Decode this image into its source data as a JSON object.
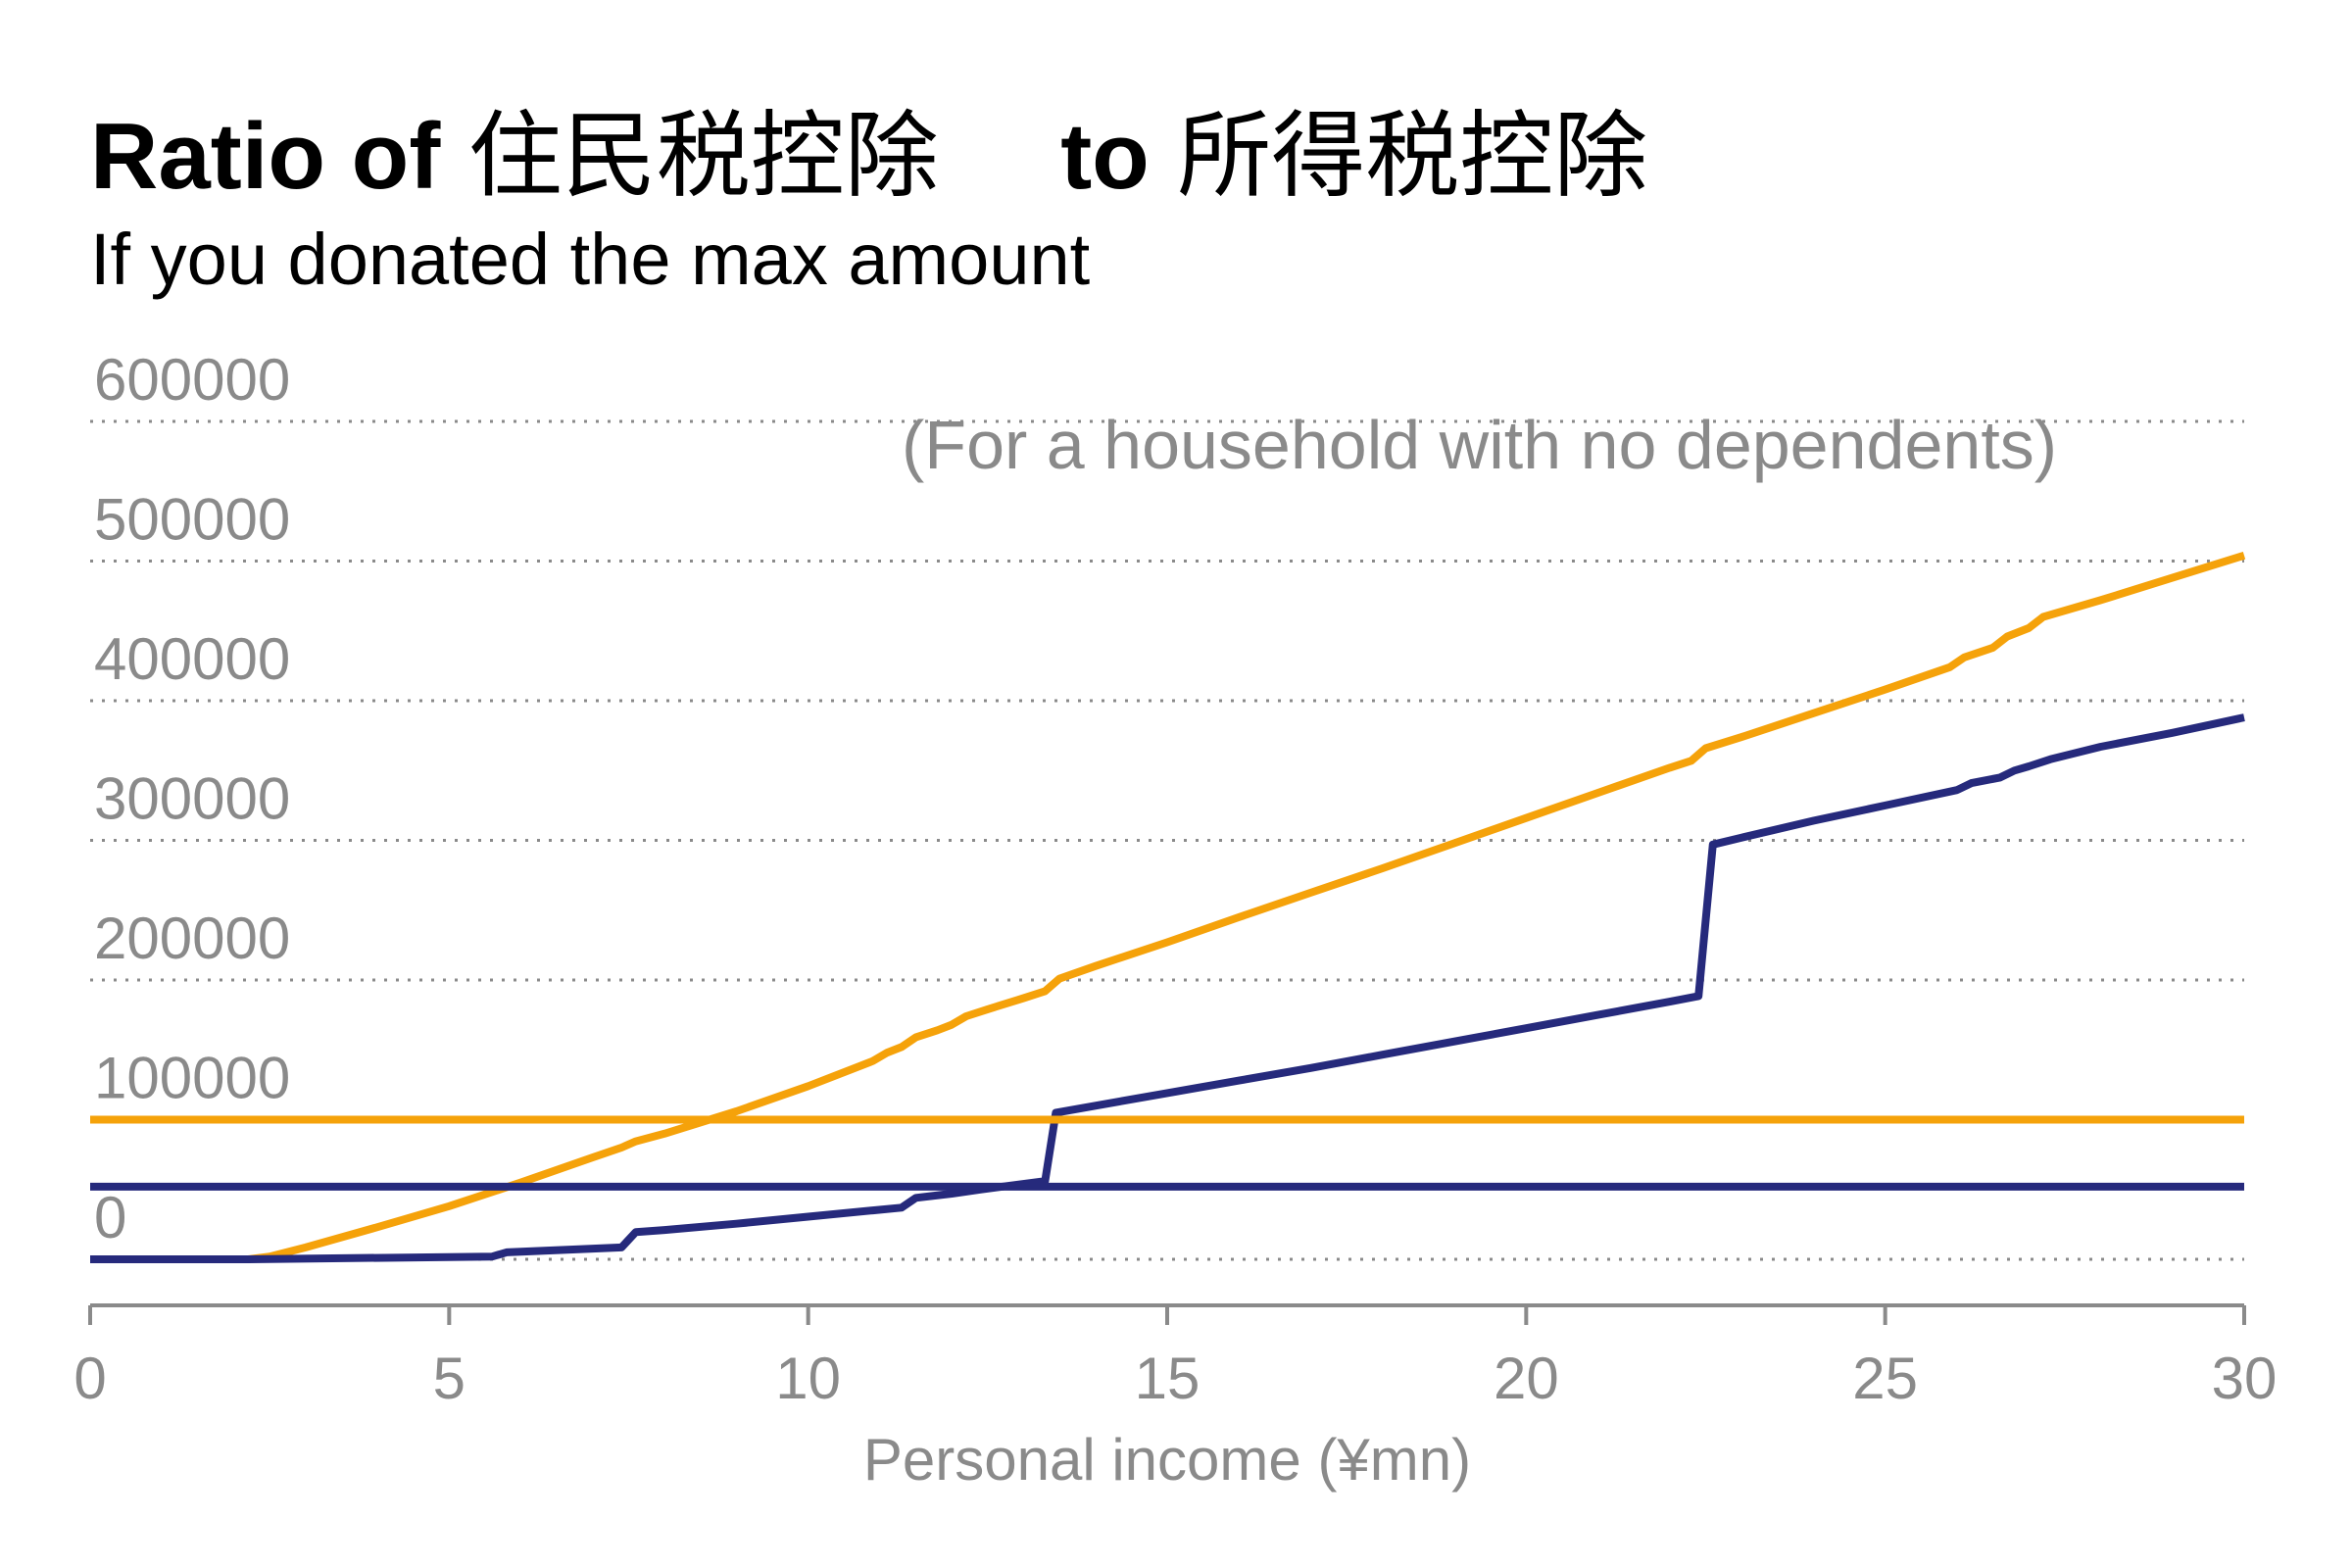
{
  "chart_data": {
    "type": "line",
    "title_prefix": "Ratio of",
    "title_jp_1": "住民税控除",
    "title_mid": "to",
    "title_jp_2": "所得税控除",
    "subtitle": "If you donated the max amount",
    "annotation": "(For a household with no dependents)",
    "xlabel": "Personal income (¥mn)",
    "ylabel": "",
    "xlim": [
      0,
      30
    ],
    "ylim": [
      0,
      600000
    ],
    "x_ticks": [
      0,
      5,
      10,
      15,
      20,
      25,
      30
    ],
    "y_ticks": [
      0,
      100000,
      200000,
      300000,
      400000,
      500000,
      600000
    ],
    "grid": true,
    "series": [
      {
        "color": "#f5a20a",
        "points": [
          [
            0,
            0
          ],
          [
            2.2,
            0
          ],
          [
            2.5,
            2000
          ],
          [
            3,
            8500
          ],
          [
            4,
            23000
          ],
          [
            5,
            38000
          ],
          [
            6,
            55000
          ],
          [
            7,
            73000
          ],
          [
            7.4,
            80000
          ],
          [
            7.6,
            84500
          ],
          [
            8,
            90000
          ],
          [
            9,
            106000
          ],
          [
            10,
            124000
          ],
          [
            10.9,
            142000
          ],
          [
            11.1,
            148000
          ],
          [
            11.3,
            152000
          ],
          [
            11.5,
            159000
          ],
          [
            11.8,
            164000
          ],
          [
            12,
            168000
          ],
          [
            12.2,
            174000
          ],
          [
            12.5,
            179000
          ],
          [
            13,
            187000
          ],
          [
            13.3,
            192000
          ],
          [
            13.5,
            201000
          ],
          [
            14,
            210000
          ],
          [
            15,
            227000
          ],
          [
            16,
            245000
          ],
          [
            17,
            262500
          ],
          [
            18,
            280000
          ],
          [
            19,
            298000
          ],
          [
            20,
            316000
          ],
          [
            21,
            334000
          ],
          [
            22,
            352000
          ],
          [
            22.3,
            357000
          ],
          [
            22.5,
            366000
          ],
          [
            23,
            374000
          ],
          [
            24,
            391000
          ],
          [
            25,
            408000
          ],
          [
            25.9,
            424000
          ],
          [
            26.1,
            431000
          ],
          [
            26.5,
            438000
          ],
          [
            26.7,
            446000
          ],
          [
            27,
            452000
          ],
          [
            27.2,
            460000
          ],
          [
            28,
            472000
          ],
          [
            29,
            488000
          ],
          [
            30,
            504000
          ]
        ]
      },
      {
        "color": "#262a7c",
        "points": [
          [
            0,
            0
          ],
          [
            2.2,
            0
          ],
          [
            5.6,
            2000
          ],
          [
            5.8,
            5000
          ],
          [
            7.4,
            8500
          ],
          [
            7.6,
            19500
          ],
          [
            8,
            21000
          ],
          [
            9,
            25500
          ],
          [
            10,
            30500
          ],
          [
            10.9,
            35000
          ],
          [
            11.3,
            37000
          ],
          [
            11.5,
            44000
          ],
          [
            12,
            47000
          ],
          [
            12.4,
            50000
          ],
          [
            13.3,
            56000
          ],
          [
            13.45,
            105000
          ],
          [
            14,
            110000
          ],
          [
            15,
            119000
          ],
          [
            16,
            128000
          ],
          [
            17,
            137000
          ],
          [
            18,
            146500
          ],
          [
            19,
            156000
          ],
          [
            20,
            165500
          ],
          [
            21,
            175000
          ],
          [
            22,
            184500
          ],
          [
            22.4,
            188500
          ],
          [
            22.6,
            297000
          ],
          [
            23,
            302000
          ],
          [
            24,
            314000
          ],
          [
            25,
            325000
          ],
          [
            26,
            336000
          ],
          [
            26.2,
            341000
          ],
          [
            26.6,
            345000
          ],
          [
            26.8,
            350000
          ],
          [
            27,
            353000
          ],
          [
            27.3,
            358000
          ],
          [
            28,
            367000
          ],
          [
            29,
            377000
          ],
          [
            30,
            388000
          ]
        ]
      },
      {
        "color": "#f5a20a",
        "points": [
          [
            0,
            100000
          ],
          [
            30,
            100000
          ]
        ]
      },
      {
        "color": "#262a7c",
        "points": [
          [
            0,
            52000
          ],
          [
            30,
            52000
          ]
        ]
      }
    ]
  }
}
